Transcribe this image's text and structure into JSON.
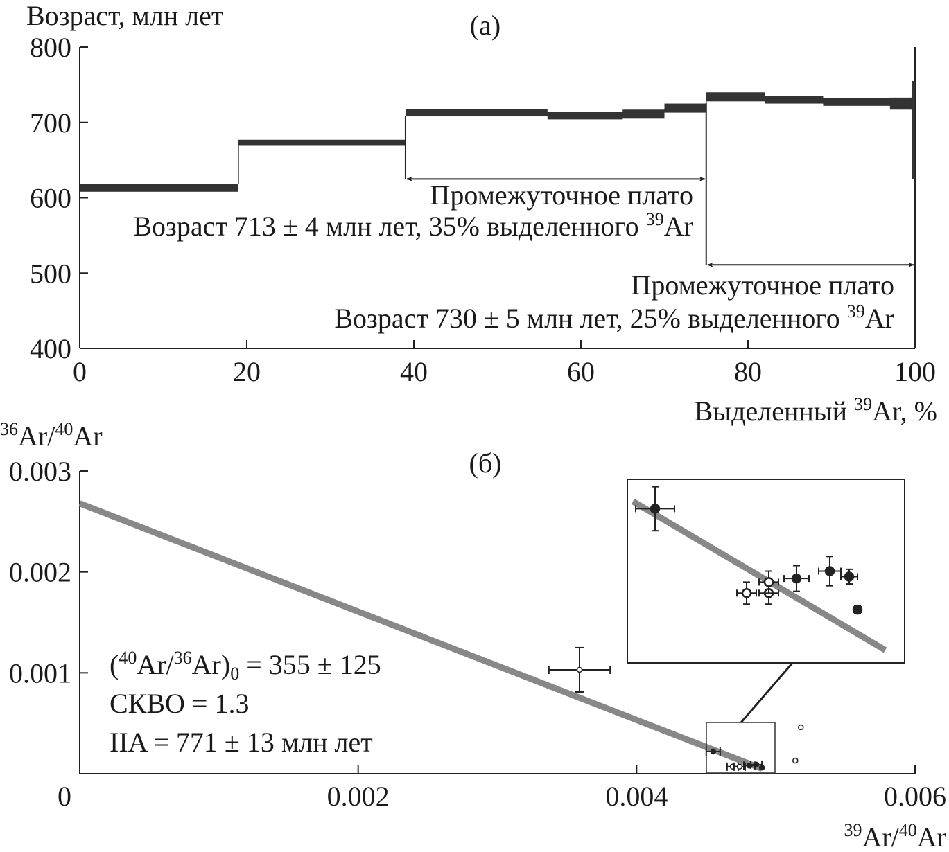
{
  "chart_data": [
    {
      "type": "line",
      "panel_label": "(а)",
      "ylabel": "Возраст, млн лет",
      "xlabel_prefix": "Выделенный ",
      "xlabel_sup": "39",
      "xlabel_suffix": "Ar, %",
      "xlim": [
        0,
        100
      ],
      "ylim": [
        400,
        800
      ],
      "xticks": [
        0,
        20,
        40,
        60,
        80,
        100
      ],
      "yticks": [
        400,
        500,
        600,
        700,
        800
      ],
      "grid": false,
      "series": [
        {
          "steps": [
            {
              "x0": 0,
              "x1": 19,
              "y": 613,
              "err": 5
            },
            {
              "x0": 19,
              "x1": 39,
              "y": 673,
              "err": 4
            },
            {
              "x0": 39,
              "x1": 56,
              "y": 713,
              "err": 5
            },
            {
              "x0": 56,
              "x1": 65,
              "y": 709,
              "err": 5
            },
            {
              "x0": 65,
              "x1": 70,
              "y": 711,
              "err": 6
            },
            {
              "x0": 70,
              "x1": 75,
              "y": 719,
              "err": 6
            },
            {
              "x0": 75,
              "x1": 82,
              "y": 734,
              "err": 6
            },
            {
              "x0": 82,
              "x1": 89,
              "y": 730,
              "err": 5
            },
            {
              "x0": 89,
              "x1": 97,
              "y": 727,
              "err": 5
            },
            {
              "x0": 97,
              "x1": 99.6,
              "y": 725,
              "err": 8
            },
            {
              "x0": 99.6,
              "x1": 100,
              "y": 690,
              "err": 65
            }
          ]
        }
      ],
      "annotations": [
        {
          "x0": 39,
          "x1": 75,
          "y_arrow": 625,
          "line1": "Промежуточное плато",
          "line2_prefix": "Возраст 713 ± 4 млн лет, 35% выделенного ",
          "line2_sup": "39",
          "line2_suffix": "Ar"
        },
        {
          "x0": 75,
          "x1": 100,
          "y_arrow": 511,
          "line1": "Промежуточное плато",
          "line2_prefix": "Возраст 730 ± 5 млн лет, 25% выделенного ",
          "line2_sup": "39",
          "line2_suffix": "Ar"
        }
      ]
    },
    {
      "type": "scatter",
      "panel_label": "(б)",
      "ylabel_sup1": "36",
      "ylabel_mid": "Ar/",
      "ylabel_sup2": "40",
      "ylabel_end": "Ar",
      "xlabel_sup1": "39",
      "xlabel_mid": "Ar/",
      "xlabel_sup2": "40",
      "xlabel_end": "Ar",
      "xlim": [
        0,
        0.006
      ],
      "ylim": [
        0,
        0.003
      ],
      "xticks": [
        "0",
        "0.002",
        "0.004",
        "0.006"
      ],
      "xtick_values": [
        0,
        0.002,
        0.004,
        0.006
      ],
      "yticks": [
        "0.001",
        "0.002",
        "0.003"
      ],
      "ytick_values": [
        0.001,
        0.002,
        0.003
      ],
      "grid": false,
      "fit_line": {
        "x": [
          0,
          0.0049
        ],
        "y": [
          0.00268,
          5e-05
        ]
      },
      "points": [
        {
          "x": 0.00359,
          "y": 0.00103,
          "xerr": 0.00022,
          "yerr": 0.00022,
          "filled": false
        },
        {
          "x": 0.00455,
          "y": 0.00022,
          "xerr": 5e-05,
          "yerr": 3e-05,
          "filled": true
        },
        {
          "x": 0.00469,
          "y": 7e-05,
          "xerr": 4e-05,
          "yerr": 2e-05,
          "filled": false
        },
        {
          "x": 0.00474,
          "y": 7e-05,
          "xerr": 4e-05,
          "yerr": 2e-05,
          "filled": false
        },
        {
          "x": 0.00481,
          "y": 8e-05,
          "xerr": 4e-05,
          "yerr": 2e-05,
          "filled": true
        },
        {
          "x": 0.00486,
          "y": 9e-05,
          "xerr": 4e-05,
          "yerr": 2e-05,
          "filled": true
        },
        {
          "x": 0.0049,
          "y": 6e-05,
          "xerr": 2e-05,
          "yerr": 2e-05,
          "filled": true
        },
        {
          "x": 0.00514,
          "y": 0.00013,
          "xerr": 1e-05,
          "yerr": 1e-05,
          "filled": false
        },
        {
          "x": 0.00518,
          "y": 0.00046,
          "xerr": 2e-05,
          "yerr": 2e-05,
          "filled": false
        }
      ],
      "inset": {
        "points": [
          {
            "x": 0.1,
            "y": 0.84,
            "xerr": 0.07,
            "yerr": 0.12,
            "filled": true
          },
          {
            "x": 0.43,
            "y": 0.38,
            "xerr": 0.035,
            "yerr": 0.06,
            "filled": false
          },
          {
            "x": 0.51,
            "y": 0.38,
            "xerr": 0.035,
            "yerr": 0.06,
            "filled": false
          },
          {
            "x": 0.51,
            "y": 0.44,
            "xerr": 0.035,
            "yerr": 0.06,
            "filled": false
          },
          {
            "x": 0.61,
            "y": 0.46,
            "xerr": 0.045,
            "yerr": 0.07,
            "filled": true
          },
          {
            "x": 0.73,
            "y": 0.5,
            "xerr": 0.04,
            "yerr": 0.08,
            "filled": true
          },
          {
            "x": 0.8,
            "y": 0.47,
            "xerr": 0.03,
            "yerr": 0.04,
            "filled": true
          },
          {
            "x": 0.83,
            "y": 0.29,
            "xerr": 0.015,
            "yerr": 0.02,
            "filled": true
          }
        ],
        "fit_line": {
          "x": [
            0.02,
            1.0
          ],
          "y": [
            0.88,
            0.07
          ]
        }
      },
      "legend_line1_prefix": "(",
      "legend_line1_sup1": "40",
      "legend_line1_mid": "Ar/",
      "legend_line1_sup2": "36",
      "legend_line1_sub_pre": "Ar)",
      "legend_line1_sub": "0",
      "legend_line1_suffix": " = 355 ± 125",
      "legend_line2": "СКВО = 1.3",
      "legend_line3": "IIA = 771 ± 13 млн лет"
    }
  ]
}
